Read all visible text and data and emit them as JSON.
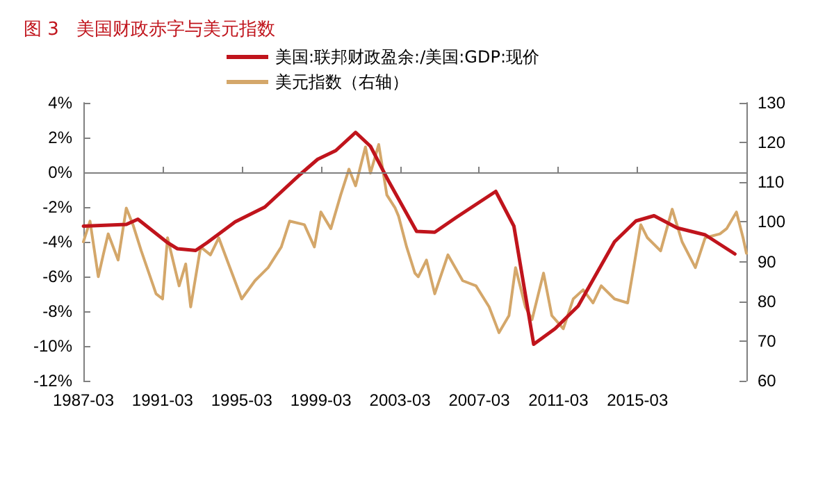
{
  "chart_data": {
    "type": "line",
    "title": "图 3   美国财政赤字与美元指数",
    "legend": "top",
    "grid": false,
    "marker": "none",
    "line_style": "solid",
    "xlim": [
      "1987-03",
      "2020-09"
    ],
    "xticks": [
      "1987-03",
      "1991-03",
      "1995-03",
      "1999-03",
      "2003-03",
      "2007-03",
      "2011-03",
      "2015-03"
    ],
    "ylim": [
      -12,
      4
    ],
    "yticks": [
      {
        "value": -12,
        "label": "-12%"
      },
      {
        "value": -10,
        "label": "-10%"
      },
      {
        "value": -8,
        "label": "-8%"
      },
      {
        "value": -6,
        "label": "-6%"
      },
      {
        "value": -4,
        "label": "-4%"
      },
      {
        "value": -2,
        "label": "-2%"
      },
      {
        "value": 0,
        "label": "0%"
      },
      {
        "value": 2,
        "label": "2%"
      },
      {
        "value": 4,
        "label": "4%"
      }
    ],
    "y2lim": [
      60,
      130
    ],
    "y2ticks": [
      60,
      70,
      80,
      90,
      100,
      110,
      120,
      130
    ],
    "ref_lines": [
      {
        "axis": "y",
        "value": 0,
        "color": "#808080"
      }
    ],
    "series": [
      {
        "name": "美国:联邦财政盈余:/美国:GDP:现价",
        "color": "#c0141c",
        "x": [
          "1987-03",
          "1989-05",
          "1989-12",
          "1991-06",
          "1991-12",
          "1992-11",
          "1993-06",
          "1994-11",
          "1996-05",
          "1998-02",
          "1999-01",
          "1999-12",
          "2000-12",
          "2001-09",
          "2002-08",
          "2004-01",
          "2004-12",
          "2006-01",
          "2008-01",
          "2008-12",
          "2009-12",
          "2011-01",
          "2012-03",
          "2014-01",
          "2015-02",
          "2016-01",
          "2017-03",
          "2018-08",
          "2020-02"
        ],
        "values": [
          -3.1,
          -3.0,
          -2.7,
          -4.05,
          -4.4,
          -4.5,
          -4.05,
          -2.85,
          -2.0,
          -0.15,
          0.75,
          1.25,
          2.3,
          1.5,
          -0.5,
          -3.4,
          -3.45,
          -2.6,
          -1.1,
          -3.1,
          -9.9,
          -9.0,
          -7.7,
          -4.0,
          -2.8,
          -2.5,
          -3.2,
          -3.6,
          -4.7
        ]
      },
      {
        "name": "美元指数（右轴）",
        "color": "#d4a76a",
        "axis": "y2",
        "x": [
          "1987-03",
          "1987-07",
          "1987-12",
          "1988-03",
          "1988-06",
          "1988-12",
          "1989-05",
          "1989-09",
          "1990-02",
          "1990-11",
          "1991-03",
          "1991-06",
          "1992-01",
          "1992-05",
          "1992-08",
          "1993-02",
          "1993-08",
          "1994-01",
          "1994-07",
          "1995-03",
          "1995-11",
          "1996-07",
          "1997-03",
          "1997-08",
          "1998-05",
          "1998-11",
          "1999-03",
          "1999-09",
          "2000-03",
          "2000-08",
          "2000-12",
          "2001-06",
          "2001-09",
          "2002-02",
          "2002-07",
          "2002-12",
          "2003-02",
          "2003-07",
          "2003-12",
          "2004-02",
          "2004-07",
          "2004-12",
          "2005-08",
          "2006-05",
          "2007-01",
          "2007-09",
          "2008-03",
          "2008-09",
          "2009-01",
          "2009-07",
          "2009-11",
          "2010-06",
          "2010-11",
          "2011-06",
          "2011-12",
          "2012-06",
          "2012-12",
          "2013-05",
          "2014-01",
          "2014-09",
          "2015-01",
          "2015-05",
          "2015-09",
          "2016-05",
          "2016-12",
          "2017-06",
          "2018-02",
          "2018-08",
          "2019-05",
          "2019-09",
          "2020-03",
          "2020-07",
          "2020-09"
        ],
        "values": [
          95.0,
          100.2,
          86.2,
          91.7,
          97.0,
          90.4,
          103.5,
          99.3,
          92.7,
          81.9,
          80.6,
          96.0,
          83.9,
          89.4,
          78.6,
          93.7,
          91.7,
          96.0,
          89.4,
          80.6,
          85.2,
          88.5,
          93.7,
          100.2,
          99.3,
          93.7,
          102.5,
          98.3,
          106.8,
          113.3,
          109.1,
          118.9,
          112.3,
          119.5,
          106.8,
          103.5,
          101.5,
          93.7,
          87.1,
          86.2,
          90.4,
          81.9,
          91.7,
          85.2,
          83.9,
          78.6,
          72.1,
          76.4,
          88.5,
          78.6,
          75.4,
          87.1,
          76.4,
          73.1,
          80.6,
          82.9,
          79.6,
          83.9,
          80.6,
          79.6,
          89.4,
          99.3,
          96.0,
          92.7,
          103.2,
          95.0,
          88.5,
          96.0,
          97.0,
          98.3,
          102.5,
          96.0,
          92.1
        ]
      }
    ]
  }
}
